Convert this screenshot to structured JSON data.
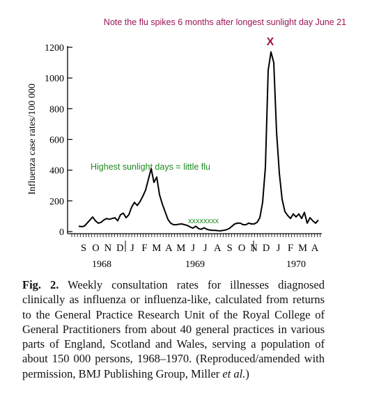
{
  "chart_data": {
    "type": "line",
    "note": "Note the flu spikes 6 months after longest sunlight day June 21",
    "peak_marker": "X",
    "annotation": "Highest sunlight days = little flu",
    "low_marker": "xxxxxxxx",
    "ylabel": "Influenza case rates/100 000",
    "ylim": [
      0,
      1200
    ],
    "yticks": [
      0,
      200,
      400,
      600,
      800,
      1000,
      1200
    ],
    "months": [
      "S",
      "O",
      "N",
      "D",
      "J",
      "F",
      "M",
      "A",
      "M",
      "J",
      "J",
      "A",
      "S",
      "O",
      "N",
      "D",
      "J",
      "F",
      "M",
      "A"
    ],
    "years": [
      "1968",
      "1969",
      "1970"
    ],
    "color": "#000000",
    "values": [
      35,
      32,
      35,
      55,
      75,
      95,
      70,
      55,
      60,
      75,
      85,
      80,
      85,
      90,
      70,
      110,
      120,
      90,
      110,
      160,
      190,
      170,
      195,
      230,
      270,
      340,
      410,
      320,
      355,
      240,
      180,
      130,
      80,
      55,
      45,
      45,
      48,
      50,
      45,
      40,
      30,
      22,
      35,
      20,
      15,
      25,
      15,
      10,
      8,
      8,
      6,
      5,
      8,
      12,
      20,
      35,
      50,
      55,
      55,
      45,
      45,
      55,
      50,
      50,
      60,
      90,
      190,
      420,
      1050,
      1170,
      1100,
      650,
      380,
      210,
      130,
      105,
      85,
      115,
      95,
      115,
      85,
      125,
      55,
      90,
      70,
      55,
      75
    ]
  },
  "caption": {
    "label": "Fig. 2.",
    "text": "Weekly consultation rates for illnesses diagnosed clinically as influenza or influenza-like, calculated from returns to the General Practice Research Unit of the Royal College of General Practitioners from about 40 general practices in various parts of England, Scotland and Wales, serving a population of about 150 000 persons, 1968–1970. (Reproduced/amended with permission, BMJ Publishing Group, Miller",
    "italic": "et al.",
    "end": ")"
  }
}
